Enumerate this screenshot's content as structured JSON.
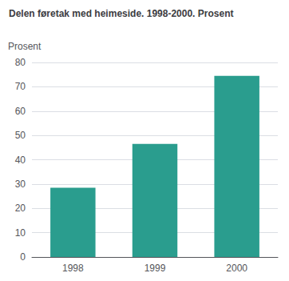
{
  "chart_data": {
    "type": "bar",
    "title": "Delen føretak med heimeside. 1998-2000. Prosent",
    "ylabel": "Prosent",
    "categories": [
      "1998",
      "1999",
      "2000"
    ],
    "values": [
      28.5,
      46.5,
      74.5
    ],
    "color": "#2a9d8e",
    "ylim": [
      0,
      80
    ],
    "yticks": [
      0,
      10,
      20,
      30,
      40,
      50,
      60,
      70,
      80
    ],
    "grid": true
  }
}
